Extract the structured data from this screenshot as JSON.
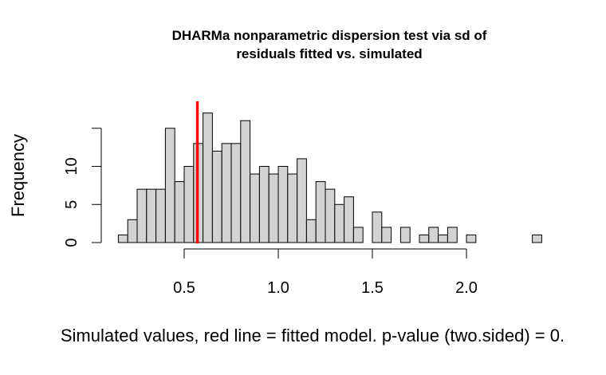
{
  "chart_data": {
    "type": "histogram",
    "title_line1": "DHARMa nonparametric dispersion test via sd of",
    "title_line2": "residuals fitted vs. simulated",
    "xlabel": "Simulated values, red line = fitted model. p-value (two.sided) = 0.",
    "ylabel": "Frequency",
    "bin_width": 0.05,
    "bins_start": [
      0.15,
      0.2,
      0.25,
      0.3,
      0.35,
      0.4,
      0.45,
      0.5,
      0.55,
      0.6,
      0.65,
      0.7,
      0.75,
      0.8,
      0.85,
      0.9,
      0.95,
      1.0,
      1.05,
      1.1,
      1.15,
      1.2,
      1.25,
      1.3,
      1.35,
      1.4,
      1.45,
      1.5,
      1.55,
      1.6,
      1.65,
      1.7,
      1.75,
      1.8,
      1.85,
      1.9,
      1.95,
      2.0,
      2.05,
      2.1,
      2.15,
      2.2,
      2.25,
      2.3,
      2.35
    ],
    "counts": [
      1,
      3,
      7,
      7,
      7,
      15,
      8,
      10,
      13,
      17,
      12,
      13,
      13,
      16,
      9,
      10,
      9,
      10,
      9,
      11,
      3,
      8,
      7,
      5,
      6,
      2,
      0,
      4,
      2,
      0,
      2,
      0,
      1,
      2,
      1,
      2,
      0,
      1,
      0,
      0,
      0,
      0,
      0,
      0,
      1
    ],
    "xlim": [
      0.0,
      2.5
    ],
    "ylim": [
      0,
      17
    ],
    "x_ticks": [
      0.5,
      1.0,
      1.5,
      2.0
    ],
    "x_tick_labels": [
      "0.5",
      "1.0",
      "1.5",
      "2.0"
    ],
    "y_ticks": [
      0,
      5,
      10,
      15
    ],
    "y_tick_labels": [
      "0",
      "5",
      "10",
      ""
    ],
    "observed_value": 0.57,
    "observed_line_color": "#ff0000",
    "bar_fill": "#d3d3d3"
  }
}
